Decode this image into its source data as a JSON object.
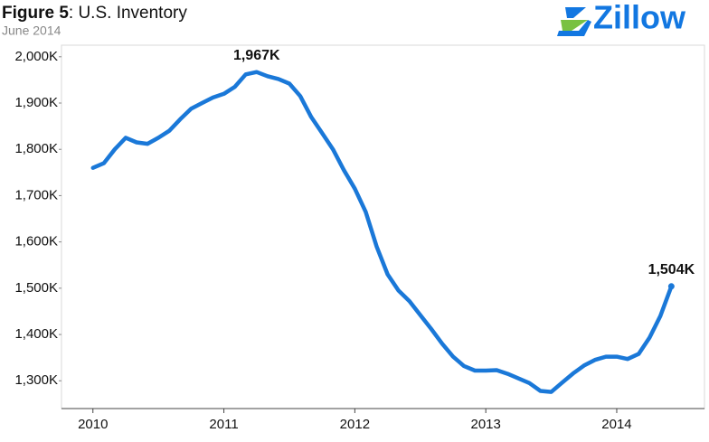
{
  "chart_data": {
    "type": "line",
    "title_prefix": "Figure 5",
    "title": ": U.S. Inventory",
    "subtitle": "June 2014",
    "logo": "Zillow",
    "x": [
      2010,
      2010.083,
      2010.167,
      2010.25,
      2010.333,
      2010.417,
      2010.5,
      2010.583,
      2010.667,
      2010.75,
      2010.833,
      2010.917,
      2011,
      2011.083,
      2011.167,
      2011.25,
      2011.333,
      2011.417,
      2011.5,
      2011.583,
      2011.667,
      2011.75,
      2011.833,
      2011.917,
      2012,
      2012.083,
      2012.167,
      2012.25,
      2012.333,
      2012.417,
      2012.5,
      2012.583,
      2012.667,
      2012.75,
      2012.833,
      2012.917,
      2013,
      2013.083,
      2013.167,
      2013.25,
      2013.333,
      2013.417,
      2013.5,
      2013.583,
      2013.667,
      2013.75,
      2013.833,
      2013.917,
      2014,
      2014.083,
      2014.167,
      2014.25,
      2014.333,
      2014.417
    ],
    "series": [
      {
        "name": "U.S. Inventory",
        "color": "#1a78d8",
        "values": [
          1760,
          1770,
          1800,
          1825,
          1815,
          1812,
          1825,
          1840,
          1865,
          1888,
          1900,
          1912,
          1920,
          1935,
          1962,
          1967,
          1958,
          1952,
          1942,
          1915,
          1870,
          1835,
          1800,
          1755,
          1715,
          1665,
          1590,
          1530,
          1495,
          1472,
          1442,
          1412,
          1380,
          1352,
          1332,
          1322,
          1322,
          1323,
          1315,
          1305,
          1295,
          1278,
          1276,
          1296,
          1316,
          1333,
          1345,
          1352,
          1352,
          1347,
          1358,
          1393,
          1440,
          1504
        ],
        "value_labels": [
          null,
          null,
          null,
          null,
          null,
          null,
          null,
          null,
          null,
          null,
          null,
          null,
          null,
          null,
          null,
          "1,967K",
          null,
          null,
          null,
          null,
          null,
          null,
          null,
          null,
          null,
          null,
          null,
          null,
          null,
          null,
          null,
          null,
          null,
          null,
          null,
          null,
          null,
          null,
          null,
          null,
          null,
          null,
          null,
          null,
          null,
          null,
          null,
          null,
          null,
          null,
          null,
          null,
          null,
          "1,504K"
        ]
      }
    ],
    "xlim": [
      2009.76,
      2014.67
    ],
    "xticks": [
      2010,
      2011,
      2012,
      2013,
      2014
    ],
    "ylim": [
      1240,
      2025
    ],
    "yticks": [
      {
        "value": 1300,
        "label": "1,300K"
      },
      {
        "value": 1400,
        "label": "1,400K"
      },
      {
        "value": 1500,
        "label": "1,500K"
      },
      {
        "value": 1600,
        "label": "1,600K"
      },
      {
        "value": 1700,
        "label": "1,700K"
      },
      {
        "value": 1800,
        "label": "1,800K"
      },
      {
        "value": 1900,
        "label": "1,900K"
      },
      {
        "value": 2000,
        "label": "2,000K"
      }
    ],
    "grid": false
  }
}
